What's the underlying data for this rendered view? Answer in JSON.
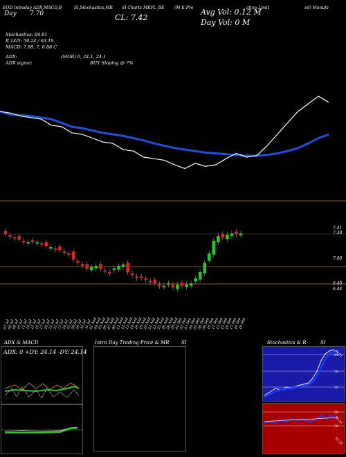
{
  "header": {
    "line1_left": "EOD Intraday ADX,MACD,B",
    "line1_mid": "SI,Stochastics,MR",
    "line1_mid2": "SI Charts",
    "line1_mid3": "MKPL_BE",
    "line1_mid4": "(M K Pro",
    "line1_right": "ction Limit",
    "line1_far": "ed) Manufa",
    "day_label": "Day",
    "day_value": "7.70",
    "cl_label": "CL: 7.42",
    "avg_vol": "Avg Vol: 0.12  M",
    "day_vol": "Day Vol: 0  M"
  },
  "indicators": {
    "stoch": "Stochastics: 94.91",
    "r": "R 14/5: 59.24 / 63.19",
    "macd": "MACD: 7.88, 7, 0.88  C",
    "adx": "ADX:",
    "adx_vals": "(MGR) 0, 24.1, 24.1",
    "adx_signal": "ADX signal:",
    "adx_signal_val": "BUY Sloping @ 7%"
  },
  "price_labels": {
    "p1": "7.41",
    "p2": "7.38",
    "p3": "7.06",
    "p4": "6.46",
    "p5": "6.44"
  },
  "dates": [
    "07 Jul",
    "08 Jul",
    "09 Jul",
    "10 Jul",
    "11 Jul",
    "14 Jul",
    "15 Jul",
    "16 Jul",
    "17 Jul",
    "18 Jul",
    "21 Jul",
    "22 Jul",
    "23 Jul",
    "24 Jul",
    "25 Jul",
    "28 Jul",
    "29 Jul",
    "30 Jul",
    "31 Jul",
    "01 Aug",
    "04 Aug",
    "05 Aug",
    "06 Aug",
    "07 Aug",
    "08 Aug",
    "11 Aug",
    "12 Aug",
    "13 Aug",
    "14 Aug",
    "18 Aug",
    "19 Aug",
    "20 Aug",
    "21 Aug",
    "22 Aug",
    "25 Aug",
    "26 Aug",
    "28 Aug",
    "29 Aug",
    "01 Sep",
    "02 Sep",
    "03 Sep",
    "04 Sep",
    "05 Sep",
    "08 Sep",
    "09 Sep",
    "10 Sep",
    "11 Sep",
    "12 Sep",
    "15 Sep",
    "16 Sep",
    "17 Sep",
    "18 Sep",
    "19 Sep"
  ],
  "panels": {
    "adx_title": "ADX  & MACD",
    "adx_vals": "ADX: 0  +DY: 24.14  -DY: 24.14",
    "intra_title": "Intra Day Trading Price  & MR",
    "intra_si": "SI",
    "stoch_title": "Stochastics & R",
    "stoch_si": "SI",
    "stoch_ticks": [
      "80",
      "50",
      "20"
    ],
    "stoch_label": "94.91",
    "rsi_ticks": [
      "50",
      "30"
    ],
    "rsi_label": "59.24",
    "rsi_label2": "63.19"
  },
  "colors": {
    "blue": "#1f4fe0",
    "green": "#22cc22",
    "red": "#dd2222",
    "orange": "#b8742a",
    "darkred": "#a80000",
    "rsi_blue": "#1a3bff"
  },
  "chart_data": {
    "type": "line",
    "title": "",
    "series": [
      {
        "values": [
          7.5,
          7.46,
          7.45,
          7.44,
          7.42,
          7.4,
          7.35,
          7.3,
          7.28,
          7.25,
          7.22,
          7.2,
          7.18,
          7.15,
          7.12,
          7.08,
          7.05,
          7.02,
          7.0,
          6.98,
          6.96,
          6.95,
          6.94,
          6.93,
          6.92,
          6.92,
          6.93,
          6.95,
          6.98,
          7.02,
          7.08,
          7.15,
          7.2
        ]
      },
      {
        "values": [
          7.5,
          7.48,
          7.44,
          7.42,
          7.4,
          7.32,
          7.3,
          7.22,
          7.2,
          7.15,
          7.1,
          7.08,
          7.0,
          6.98,
          6.9,
          6.88,
          6.86,
          6.8,
          6.75,
          6.82,
          6.78,
          6.8,
          6.88,
          6.95,
          6.9,
          6.92,
          7.05,
          7.2,
          7.35,
          7.5,
          7.6,
          7.7,
          7.62
        ]
      }
    ],
    "candles_close": [
      7.41,
      7.38,
      7.35,
      7.32,
      7.3,
      7.28,
      7.3,
      7.28,
      7.25,
      7.22,
      7.2,
      7.18,
      7.15,
      7.12,
      7.1,
      7.0,
      6.95,
      6.9,
      6.85,
      6.88,
      6.9,
      6.85,
      6.82,
      6.8,
      6.86,
      6.9,
      6.92,
      6.8,
      6.75,
      6.7,
      6.72,
      6.68,
      6.65,
      6.62,
      6.6,
      6.58,
      6.62,
      6.55,
      6.6,
      6.58,
      6.6,
      6.62,
      6.7,
      6.8,
      6.95,
      7.1,
      7.3,
      7.38,
      7.35,
      7.4,
      7.42,
      7.41,
      7.42
    ]
  }
}
